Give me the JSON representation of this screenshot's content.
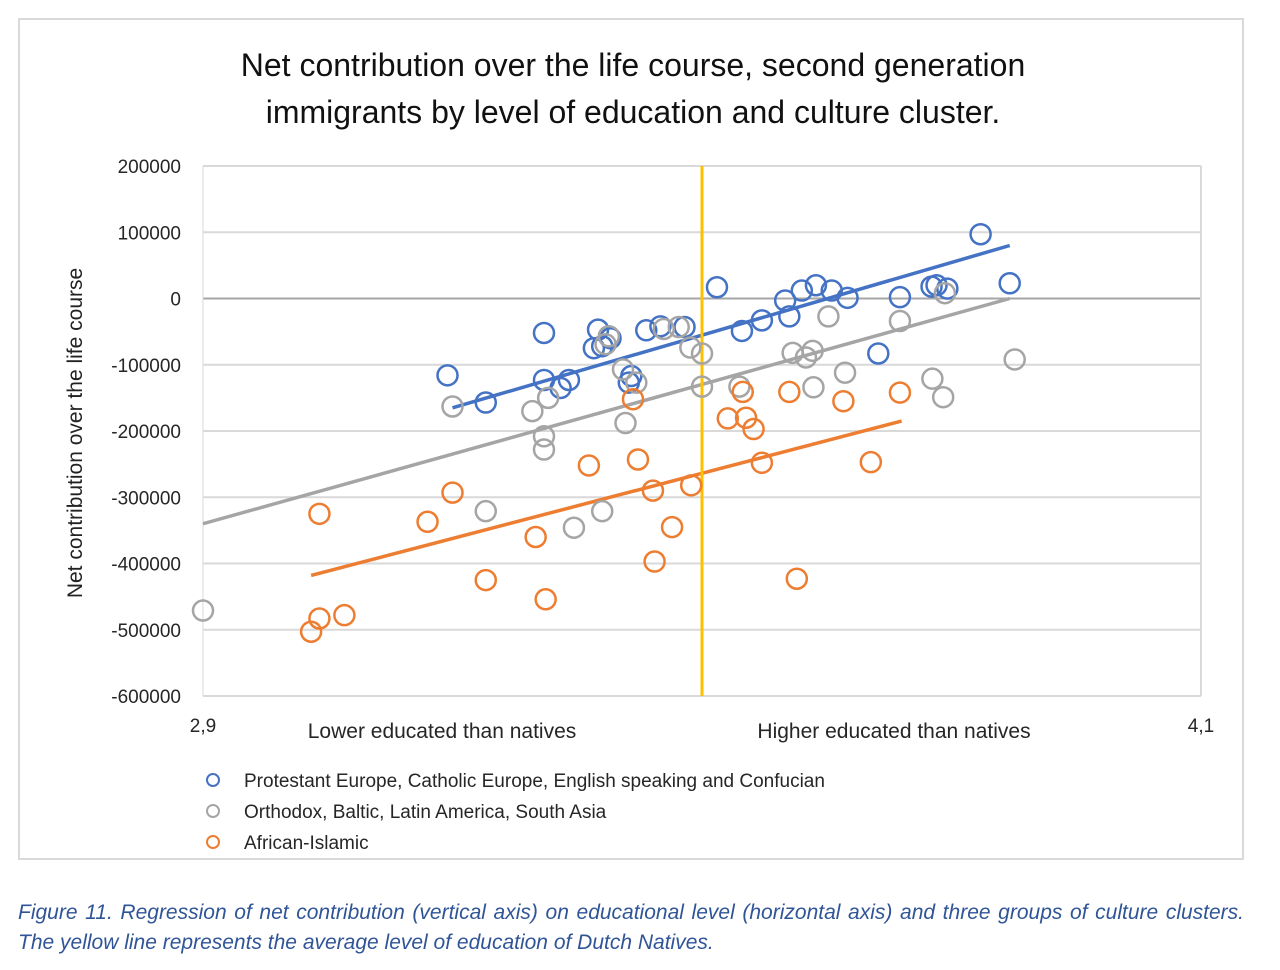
{
  "chart_data": {
    "type": "scatter",
    "title": "Net contribution over the life course, second generation immigrants by level of education and culture cluster.",
    "xlabel": "",
    "ylabel": "Net contribution over the life course",
    "xlim": [
      2.9,
      4.1
    ],
    "ylim": [
      -600000,
      200000
    ],
    "x_tick_labels": [
      "2,9",
      "4,1"
    ],
    "y_ticks": [
      200000,
      100000,
      0,
      -100000,
      -200000,
      -300000,
      -400000,
      -500000,
      -600000
    ],
    "y_tick_labels": [
      "200000",
      "100000",
      "0",
      "-100000",
      "-200000",
      "-300000",
      "-400000",
      "-500000",
      "-600000"
    ],
    "region_labels": {
      "left": "Lower educated than natives",
      "right": "Higher educated than natives"
    },
    "reference_line": {
      "x": 3.5,
      "color": "#ffc000"
    },
    "grid": true,
    "legend_position": "bottom",
    "series": [
      {
        "name": "Protestant Europe, Catholic Europe, English speaking and Confucian",
        "color": "#4472c4",
        "points": [
          [
            3.194,
            -116000
          ],
          [
            3.24,
            -157000
          ],
          [
            3.31,
            -52000
          ],
          [
            3.31,
            -123000
          ],
          [
            3.33,
            -135000
          ],
          [
            3.34,
            -123000
          ],
          [
            3.37,
            -75000
          ],
          [
            3.375,
            -47000
          ],
          [
            3.38,
            -72000
          ],
          [
            3.39,
            -60000
          ],
          [
            3.412,
            -127000
          ],
          [
            3.415,
            -117000
          ],
          [
            3.433,
            -48000
          ],
          [
            3.45,
            -42000
          ],
          [
            3.479,
            -43000
          ],
          [
            3.518,
            17000
          ],
          [
            3.548,
            -49000
          ],
          [
            3.572,
            -33000
          ],
          [
            3.6,
            -3000
          ],
          [
            3.605,
            -27000
          ],
          [
            3.62,
            12000
          ],
          [
            3.637,
            20000
          ],
          [
            3.656,
            12000
          ],
          [
            3.675,
            1000
          ],
          [
            3.712,
            -83000
          ],
          [
            3.738,
            2000
          ],
          [
            3.776,
            18000
          ],
          [
            3.782,
            20000
          ],
          [
            3.795,
            15000
          ],
          [
            3.835,
            97000
          ],
          [
            3.87,
            23000
          ]
        ],
        "trend": [
          [
            3.2,
            -165000
          ],
          [
            3.87,
            80000
          ]
        ]
      },
      {
        "name": "Orthodox, Baltic, Latin America, South Asia",
        "color": "#a5a5a5",
        "points": [
          [
            2.9,
            -471000
          ],
          [
            3.2,
            -163000
          ],
          [
            3.24,
            -321000
          ],
          [
            3.296,
            -170000
          ],
          [
            3.31,
            -228000
          ],
          [
            3.31,
            -208000
          ],
          [
            3.315,
            -150000
          ],
          [
            3.346,
            -346000
          ],
          [
            3.38,
            -321000
          ],
          [
            3.384,
            -69000
          ],
          [
            3.388,
            -57000
          ],
          [
            3.405,
            -107000
          ],
          [
            3.408,
            -188000
          ],
          [
            3.421,
            -127000
          ],
          [
            3.454,
            -46000
          ],
          [
            3.472,
            -43000
          ],
          [
            3.486,
            -74000
          ],
          [
            3.5,
            -133000
          ],
          [
            3.5,
            -83000
          ],
          [
            3.545,
            -133000
          ],
          [
            3.609,
            -82000
          ],
          [
            3.625,
            -89000
          ],
          [
            3.633,
            -79000
          ],
          [
            3.634,
            -134000
          ],
          [
            3.652,
            -27000
          ],
          [
            3.672,
            -112000
          ],
          [
            3.738,
            -34000
          ],
          [
            3.777,
            -121000
          ],
          [
            3.79,
            -149000
          ],
          [
            3.792,
            8000
          ],
          [
            3.876,
            -92000
          ]
        ],
        "trend": [
          [
            2.9,
            -340000
          ],
          [
            3.87,
            0
          ]
        ]
      },
      {
        "name": "African-Islamic",
        "color": "#ed7d31",
        "points": [
          [
            3.03,
            -503000
          ],
          [
            3.04,
            -325000
          ],
          [
            3.04,
            -483000
          ],
          [
            3.07,
            -478000
          ],
          [
            3.17,
            -337000
          ],
          [
            3.2,
            -293000
          ],
          [
            3.24,
            -425000
          ],
          [
            3.3,
            -360000
          ],
          [
            3.312,
            -454000
          ],
          [
            3.364,
            -252000
          ],
          [
            3.417,
            -152000
          ],
          [
            3.423,
            -243000
          ],
          [
            3.441,
            -290000
          ],
          [
            3.443,
            -397000
          ],
          [
            3.464,
            -345000
          ],
          [
            3.487,
            -282000
          ],
          [
            3.531,
            -181000
          ],
          [
            3.549,
            -141000
          ],
          [
            3.553,
            -180000
          ],
          [
            3.562,
            -197000
          ],
          [
            3.572,
            -248000
          ],
          [
            3.605,
            -141000
          ],
          [
            3.614,
            -423000
          ],
          [
            3.67,
            -155000
          ],
          [
            3.703,
            -247000
          ],
          [
            3.738,
            -142000
          ]
        ],
        "trend": [
          [
            3.03,
            -418000
          ],
          [
            3.74,
            -185000
          ]
        ]
      }
    ]
  },
  "caption": "Figure 11. Regression of net contribution (vertical axis) on educational level (horizontal axis) and three groups of culture clusters. The yellow line represents the average level of education of Dutch Natives."
}
